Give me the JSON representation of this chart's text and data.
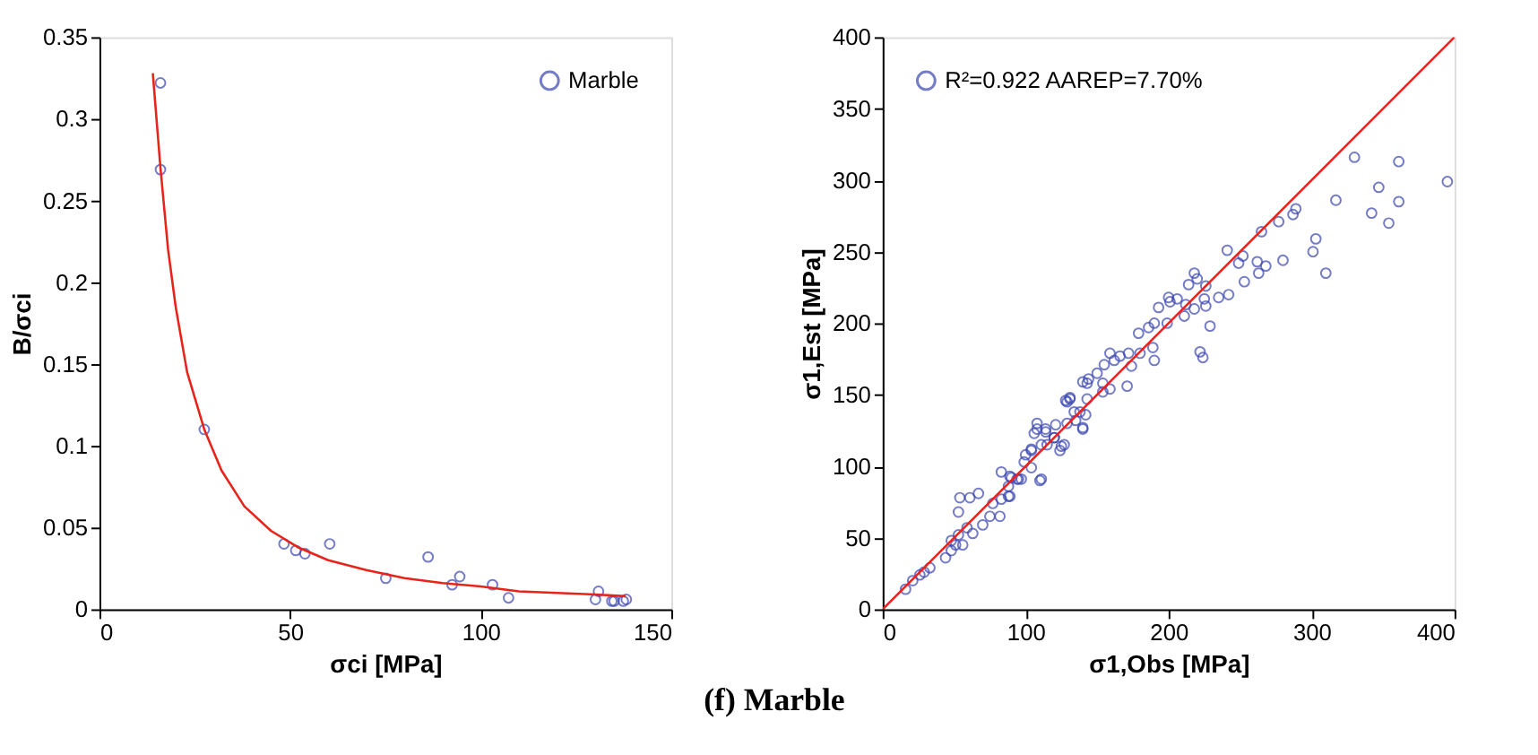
{
  "chart_data": [
    {
      "type": "scatter",
      "xlabel": "σci [MPa]",
      "ylabel": "B/σci",
      "xlim": [
        0,
        150
      ],
      "ylim": [
        0,
        0.35
      ],
      "xticks": [
        0,
        50,
        100,
        150
      ],
      "yticks": [
        0,
        0.05,
        0.1,
        0.15,
        0.2,
        0.25,
        0.3,
        0.35
      ],
      "grid": false,
      "legend": "top right",
      "annotations": [
        "(f) Marble"
      ],
      "series": [
        {
          "name": "Marble",
          "color": "#3a45b0",
          "marker": "circle",
          "x": [
            16.0,
            16.0,
            27.5,
            48.4,
            51.5,
            53.9,
            60.4,
            75.1,
            86.2,
            92.5,
            94.5,
            103.1,
            107.3,
            130.1,
            130.9,
            134.4,
            135.0,
            137.4,
            138.2
          ],
          "values": [
            0.322,
            0.269,
            0.11,
            0.04,
            0.036,
            0.034,
            0.04,
            0.019,
            0.032,
            0.015,
            0.02,
            0.015,
            0.007,
            0.006,
            0.011,
            0.005,
            0.005,
            0.005,
            0.006
          ]
        },
        {
          "color": "#e8231a",
          "type": "line",
          "line_style": "solid",
          "x": [
            14,
            16,
            18,
            20,
            23,
            27.5,
            32,
            38,
            45,
            52,
            60,
            70,
            80,
            90,
            100,
            110,
            120,
            130,
            138
          ],
          "values": [
            0.328,
            0.27,
            0.22,
            0.185,
            0.145,
            0.11,
            0.085,
            0.063,
            0.048,
            0.038,
            0.03,
            0.024,
            0.019,
            0.016,
            0.014,
            0.011,
            0.01,
            0.009,
            0.008
          ]
        }
      ]
    },
    {
      "type": "scatter",
      "xlabel": "σ1,Obs [MPa]",
      "ylabel": "σ1,Est [MPa]",
      "xlim": [
        0,
        400
      ],
      "ylim": [
        0,
        400
      ],
      "xticks": [
        0,
        100,
        200,
        300,
        400
      ],
      "yticks": [
        0,
        50,
        100,
        150,
        200,
        250,
        300,
        350,
        400
      ],
      "grid": false,
      "legend": "top left",
      "series": [
        {
          "name": "R²=0.922 AAREP=7.70%",
          "color": "#3a45b0",
          "marker": "circle",
          "x": [
            395,
            361,
            361,
            347,
            342,
            354,
            330,
            317,
            310,
            301,
            303,
            289,
            287,
            277,
            265,
            280,
            268,
            263,
            262,
            253,
            252,
            249,
            241,
            242,
            235,
            229,
            222,
            224,
            218,
            220,
            214,
            226,
            225,
            226,
            218,
            212,
            211,
            206,
            200,
            201,
            193,
            199,
            190,
            186,
            179,
            189,
            190,
            174,
            180,
            172,
            166,
            159,
            162,
            155,
            150,
            144,
            143,
            154,
            154,
            159,
            171,
            140,
            143,
            131,
            128,
            134,
            138,
            142,
            135,
            140,
            129,
            121,
            108,
            106,
            114,
            120,
            115,
            111,
            127,
            124,
            104,
            100,
            99,
            104,
            110,
            95,
            90,
            89,
            16,
            21,
            26,
            29,
            33,
            44,
            48,
            51,
            56,
            48,
            53,
            59,
            63,
            53,
            54,
            61,
            67,
            75,
            82,
            70,
            77,
            83,
            88,
            83,
            88,
            94,
            97,
            89,
            111,
            104,
            108,
            114,
            120,
            125,
            129,
            131,
            140
          ],
          "values": [
            299,
            313,
            285,
            295,
            277,
            270,
            316,
            286,
            235,
            250,
            259,
            280,
            276,
            271,
            264,
            244,
            240,
            235,
            243,
            229,
            247,
            242,
            251,
            220,
            218,
            198,
            180,
            176,
            235,
            231,
            227,
            226,
            217,
            212,
            210,
            213,
            205,
            217,
            218,
            215,
            211,
            200,
            200,
            197,
            193,
            183,
            174,
            170,
            179,
            179,
            177,
            179,
            174,
            171,
            165,
            161,
            158,
            158,
            152,
            154,
            156,
            159,
            147,
            147,
            146,
            138,
            138,
            136,
            132,
            126,
            130,
            129,
            130,
            123,
            126,
            120,
            115,
            115,
            115,
            111,
            111,
            108,
            103,
            99,
            90,
            91,
            92,
            79,
            14,
            20,
            24,
            26,
            29,
            36,
            41,
            45,
            45,
            48,
            52,
            57,
            53,
            68,
            78,
            78,
            81,
            65,
            65,
            59,
            74,
            77,
            79,
            96,
            86,
            91,
            91,
            93,
            91,
            112,
            126,
            124,
            120,
            114,
            145,
            148,
            127
          ]
        },
        {
          "color": "#e8231a",
          "type": "line",
          "line_style": "solid",
          "x": [
            0,
            400
          ],
          "values": [
            0,
            400
          ]
        }
      ]
    }
  ]
}
